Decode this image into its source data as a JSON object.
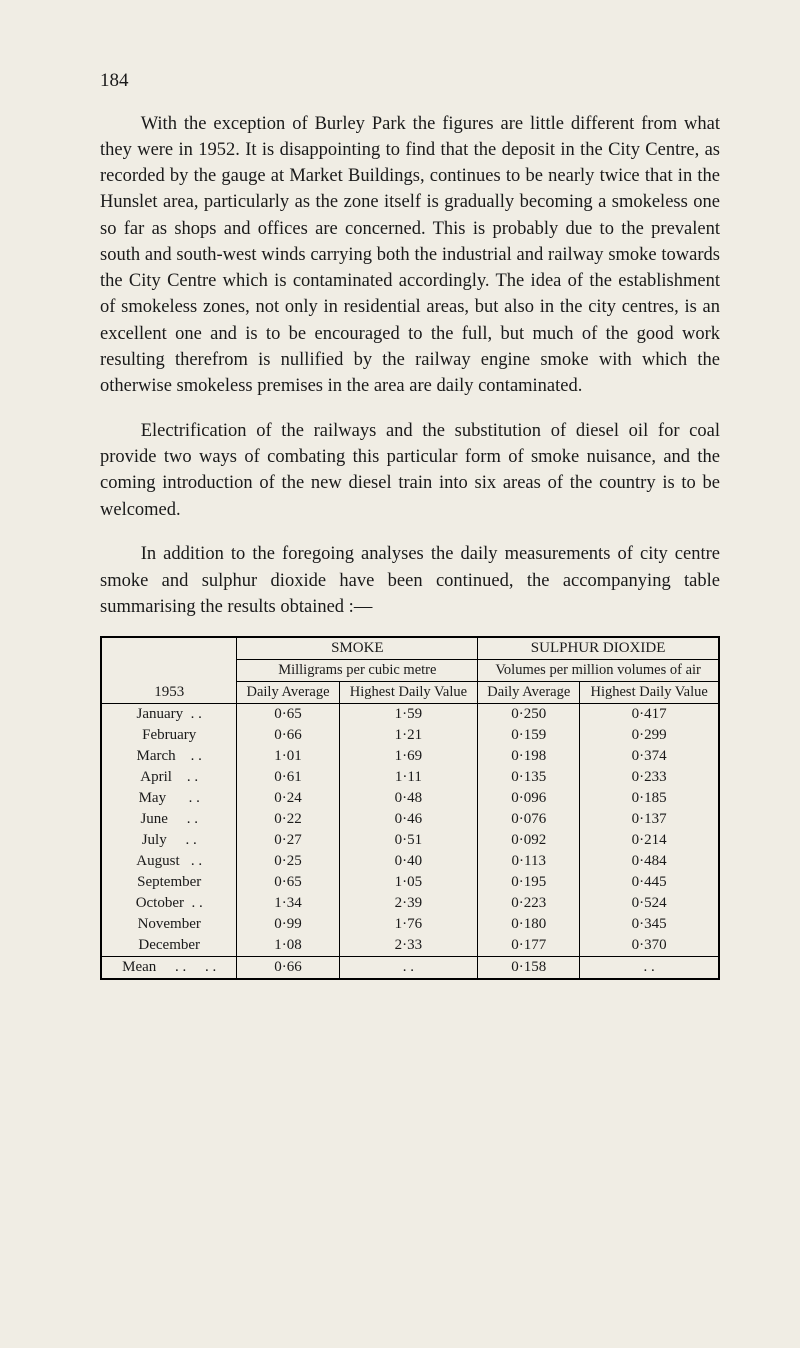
{
  "page_number": "184",
  "paragraphs": [
    "With the exception of Burley Park the figures are little different from what they were in 1952. It is disappointing to find that the deposit in the City Centre, as recorded by the gauge at Market Buildings, continues to be nearly twice that in the Hunslet area, particularly as the zone itself is gradually becoming a smokeless one so far as shops and offices are concerned. This is probably due to the prevalent south and south-west winds carrying both the industrial and railway smoke towards the City Centre which is contaminated accordingly. The idea of the establishment of smokeless zones, not only in residential areas, but also in the city centres, is an excellent one and is to be encouraged to the full, but much of the good work resulting therefrom is nullified by the railway engine smoke with which the otherwise smokeless premises in the area are daily con­taminated.",
    "Electrification of the railways and the substitution of diesel oil for coal provide two ways of combating this particular form of smoke nuisance, and the coming introduction of the new diesel train into six areas of the country is to be welcomed.",
    "In addition to the foregoing analyses the daily measurements of city centre smoke and sulphur dioxide have been continued, the accompanying table summarising the results obtained :—"
  ],
  "table": {
    "year": "1953",
    "headers": {
      "smoke": "SMOKE",
      "so2": "SULPHUR DIOXIDE",
      "smoke_sub": "Milligrams per cubic metre",
      "so2_sub": "Volumes per million volumes of air",
      "daily_avg": "Daily Average",
      "highest_daily": "Highest Daily Value"
    },
    "rows": [
      {
        "month": "January  . .",
        "s_da": "0·65",
        "s_hd": "1·59",
        "d_da": "0·250",
        "d_hd": "0·417"
      },
      {
        "month": "February",
        "s_da": "0·66",
        "s_hd": "1·21",
        "d_da": "0·159",
        "d_hd": "0·299"
      },
      {
        "month": "March    . .",
        "s_da": "1·01",
        "s_hd": "1·69",
        "d_da": "0·198",
        "d_hd": "0·374"
      },
      {
        "month": "April    . .",
        "s_da": "0·61",
        "s_hd": "1·11",
        "d_da": "0·135",
        "d_hd": "0·233"
      },
      {
        "month": "May      . .",
        "s_da": "0·24",
        "s_hd": "0·48",
        "d_da": "0·096",
        "d_hd": "0·185"
      },
      {
        "month": "June     . .",
        "s_da": "0·22",
        "s_hd": "0·46",
        "d_da": "0·076",
        "d_hd": "0·137"
      },
      {
        "month": "July     . .",
        "s_da": "0·27",
        "s_hd": "0·51",
        "d_da": "0·092",
        "d_hd": "0·214"
      },
      {
        "month": "August   . .",
        "s_da": "0·25",
        "s_hd": "0·40",
        "d_da": "0·113",
        "d_hd": "0·484"
      },
      {
        "month": "September",
        "s_da": "0·65",
        "s_hd": "1·05",
        "d_da": "0·195",
        "d_hd": "0·445"
      },
      {
        "month": "October  . .",
        "s_da": "1·34",
        "s_hd": "2·39",
        "d_da": "0·223",
        "d_hd": "0·524"
      },
      {
        "month": "November",
        "s_da": "0·99",
        "s_hd": "1·76",
        "d_da": "0·180",
        "d_hd": "0·345"
      },
      {
        "month": "December",
        "s_da": "1·08",
        "s_hd": "2·33",
        "d_da": "0·177",
        "d_hd": "0·370"
      }
    ],
    "mean": {
      "label": "Mean     . .     . .",
      "s_da": "0·66",
      "s_hd": ". .",
      "d_da": "0·158",
      "d_hd": ". ."
    }
  }
}
